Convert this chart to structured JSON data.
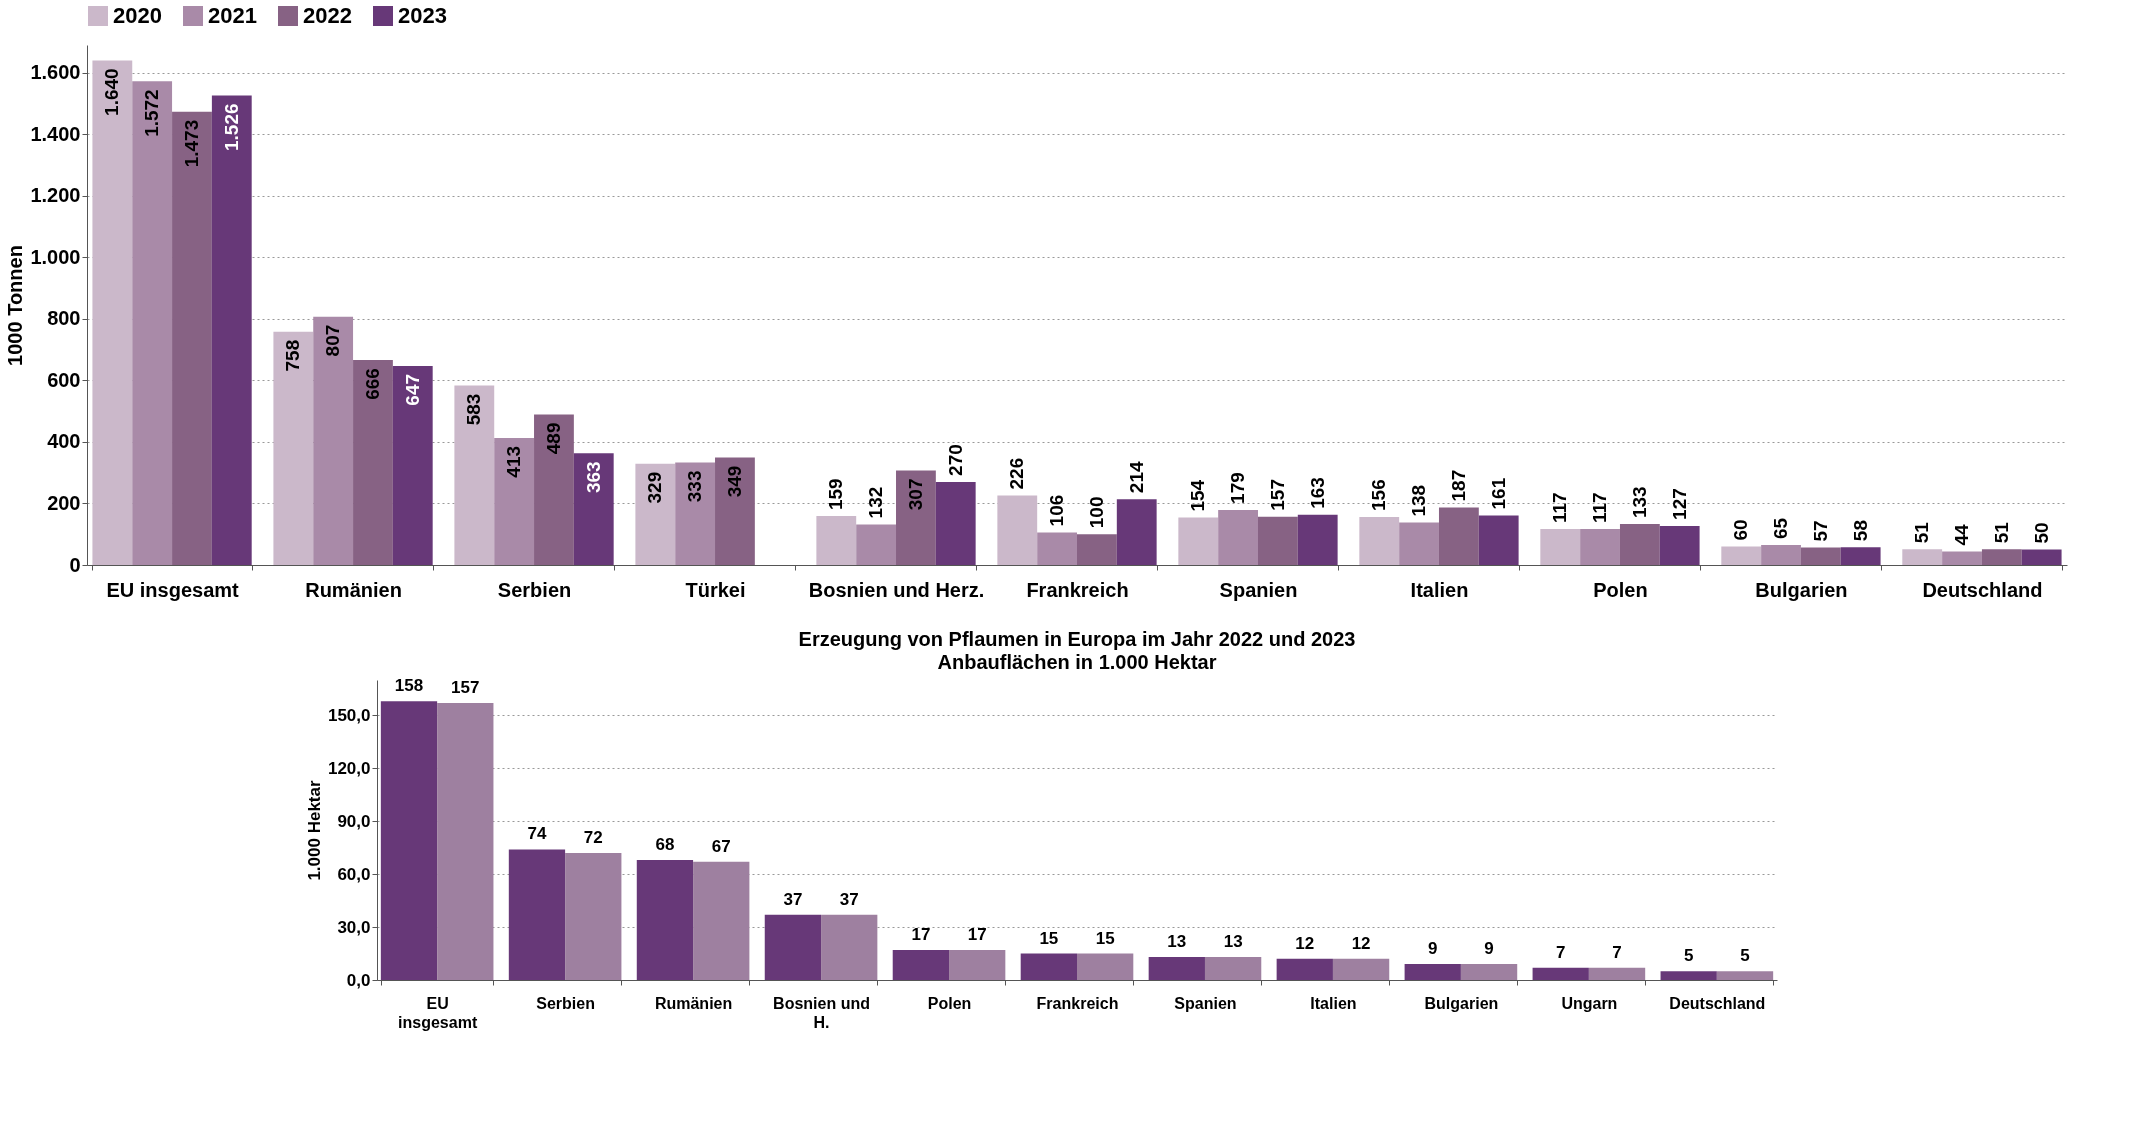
{
  "chart_data": [
    {
      "type": "bar",
      "ylabel": "1000 Tonnen",
      "categories": [
        "EU insgesamt",
        "Rumänien",
        "Serbien",
        "Türkei",
        "Bosnien und Herz.",
        "Frankreich",
        "Spanien",
        "Italien",
        "Polen",
        "Bulgarien",
        "Deutschland"
      ],
      "series": [
        {
          "name": "2020",
          "color": "#cbb8ca",
          "values": [
            1640,
            758,
            583,
            329,
            159,
            226,
            154,
            156,
            117,
            60,
            51
          ]
        },
        {
          "name": "2021",
          "color": "#a98aa8",
          "values": [
            1572,
            807,
            413,
            333,
            132,
            106,
            179,
            138,
            117,
            65,
            44
          ]
        },
        {
          "name": "2022",
          "color": "#876284",
          "values": [
            1473,
            666,
            489,
            349,
            307,
            100,
            157,
            187,
            133,
            57,
            51
          ]
        },
        {
          "name": "2023",
          "color": "#673878",
          "values": [
            1526,
            647,
            363,
            null,
            270,
            214,
            163,
            161,
            127,
            58,
            50
          ]
        }
      ],
      "ylim": [
        0,
        1690
      ],
      "yticks": [
        0,
        200,
        400,
        600,
        800,
        {
          "value": 1000,
          "label": "1.000"
        },
        {
          "value": 1200,
          "label": "1.200"
        },
        {
          "value": 1400,
          "label": "1.400"
        },
        {
          "value": 1600,
          "label": "1.600"
        }
      ],
      "value_labels": [
        [
          "1.640",
          "758",
          "583",
          "329",
          "159",
          "226",
          "154",
          "156",
          "117",
          "60",
          "51"
        ],
        [
          "1.572",
          "807",
          "413",
          "333",
          "132",
          "106",
          "179",
          "138",
          "117",
          "65",
          "44"
        ],
        [
          "1.473",
          "666",
          "489",
          "349",
          "307",
          "100",
          "157",
          "187",
          "133",
          "57",
          "51"
        ],
        [
          "1.526",
          "647",
          "363",
          null,
          "270",
          "214",
          "163",
          "161",
          "127",
          "58",
          "50"
        ]
      ],
      "grid": "y",
      "legend": "top"
    },
    {
      "type": "bar",
      "title": "Erzeugung von Pflaumen in Europa im Jahr 2022 und 2023",
      "subtitle": "Anbauflächen in 1.000 Hektar",
      "ylabel": "1.000 Hektar",
      "categories": [
        "EU insgesamt",
        "Serbien",
        "Rumänien",
        "Bosnien und H.",
        "Polen",
        "Frankreich",
        "Spanien",
        "Italien",
        "Bulgarien",
        "Ungarn",
        "Deutschland"
      ],
      "series": [
        {
          "color": "#673878",
          "values": [
            158,
            74,
            68,
            37,
            17,
            15,
            13,
            12,
            9,
            7,
            5
          ]
        },
        {
          "color": "#9e80a0",
          "values": [
            157,
            72,
            67,
            37,
            17,
            15,
            13,
            12,
            9,
            7,
            5
          ]
        }
      ],
      "ylim": [
        0,
        170
      ],
      "yticks": [
        {
          "value": 0,
          "label": "0,0"
        },
        {
          "value": 30,
          "label": "30,0"
        },
        {
          "value": 60,
          "label": "60,0"
        },
        {
          "value": 90,
          "label": "90,0"
        },
        {
          "value": 120,
          "label": "120,0"
        },
        {
          "value": 150,
          "label": "150,0"
        }
      ],
      "data_labels": true,
      "grid": "y",
      "legend": false
    }
  ]
}
